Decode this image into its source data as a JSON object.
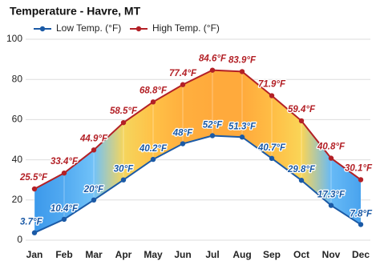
{
  "chart_data": {
    "type": "line",
    "title": "Temperature - Havre, MT",
    "categories": [
      "Jan",
      "Feb",
      "Mar",
      "Apr",
      "May",
      "Jun",
      "Jul",
      "Aug",
      "Sep",
      "Oct",
      "Nov",
      "Dec"
    ],
    "series": [
      {
        "name": "Low Temp. (°F)",
        "color": "#1b5aa6",
        "values": [
          3.7,
          10.4,
          20,
          30,
          40.2,
          48,
          52,
          51.3,
          40.7,
          29.8,
          17.3,
          7.8
        ],
        "value_labels": [
          "3.7°F",
          "10.4°F",
          "20°F",
          "30°F",
          "40.2°F",
          "48°F",
          "52°F",
          "51.3°F",
          "40.7°F",
          "29.8°F",
          "17.3°F",
          "7.8°F"
        ]
      },
      {
        "name": "High Temp. (°F)",
        "color": "#b32026",
        "values": [
          25.5,
          33.4,
          44.9,
          58.5,
          68.8,
          77.4,
          84.6,
          83.9,
          71.9,
          59.4,
          40.8,
          30.1
        ],
        "value_labels": [
          "25.5°F",
          "33.4°F",
          "44.9°F",
          "58.5°F",
          "68.8°F",
          "77.4°F",
          "84.6°F",
          "83.9°F",
          "71.9°F",
          "59.4°F",
          "40.8°F",
          "30.1°F"
        ]
      }
    ],
    "ylim": [
      0,
      100
    ],
    "yticks": [
      0,
      20,
      40,
      60,
      80,
      100
    ],
    "grid": true
  }
}
